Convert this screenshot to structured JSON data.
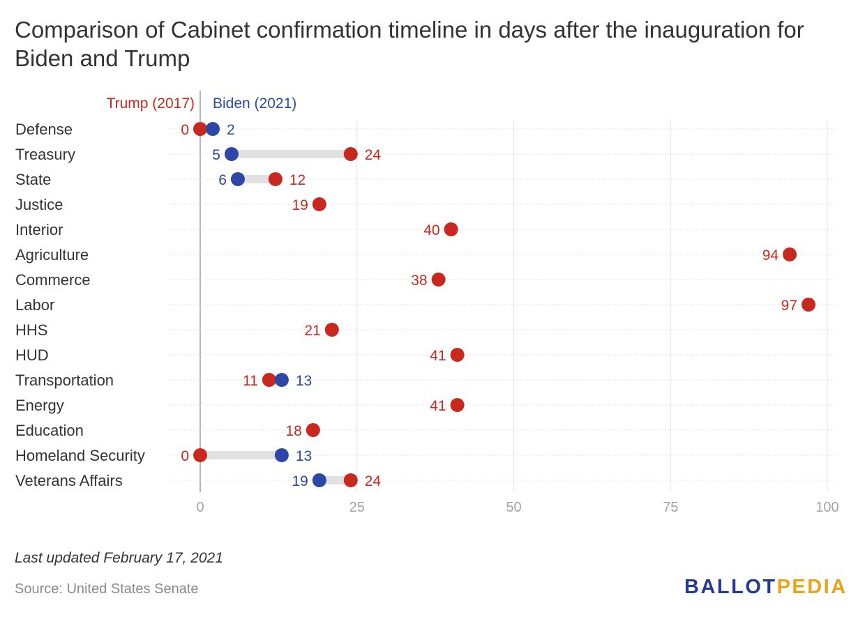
{
  "title": "Comparison of Cabinet confirmation timeline in days after the inauguration for Biden and Trump",
  "footer": {
    "updated": "Last updated February 17, 2021",
    "source": "Source: United States Senate",
    "logo_part1": "BALLOT",
    "logo_part2": "PEDIA"
  },
  "colors": {
    "trump": "#c8281e",
    "biden": "#2d46a8",
    "connector": "#e1e1e1",
    "grid": "#e3e3e3",
    "baseline": "#9e9e9e",
    "logo_blue": "#253a92",
    "logo_gold": "#e8a317"
  },
  "chart_data": {
    "type": "dumbbell",
    "xlim": [
      0,
      100
    ],
    "xticks": [
      0,
      25,
      50,
      75,
      100
    ],
    "grid": true,
    "legend_position": "top",
    "series": [
      {
        "name": "Trump (2017)",
        "color": "#c8281e",
        "values": [
          0,
          24,
          12,
          19,
          40,
          94,
          38,
          97,
          21,
          41,
          11,
          41,
          18,
          0,
          24
        ]
      },
      {
        "name": "Biden (2021)",
        "color": "#2d46a8",
        "values": [
          2,
          5,
          6,
          null,
          null,
          null,
          null,
          null,
          null,
          null,
          13,
          null,
          null,
          13,
          19
        ]
      }
    ],
    "categories": [
      "Defense",
      "Treasury",
      "State",
      "Justice",
      "Interior",
      "Agriculture",
      "Commerce",
      "Labor",
      "HHS",
      "HUD",
      "Transportation",
      "Energy",
      "Education",
      "Homeland Security",
      "Veterans Affairs"
    ]
  }
}
